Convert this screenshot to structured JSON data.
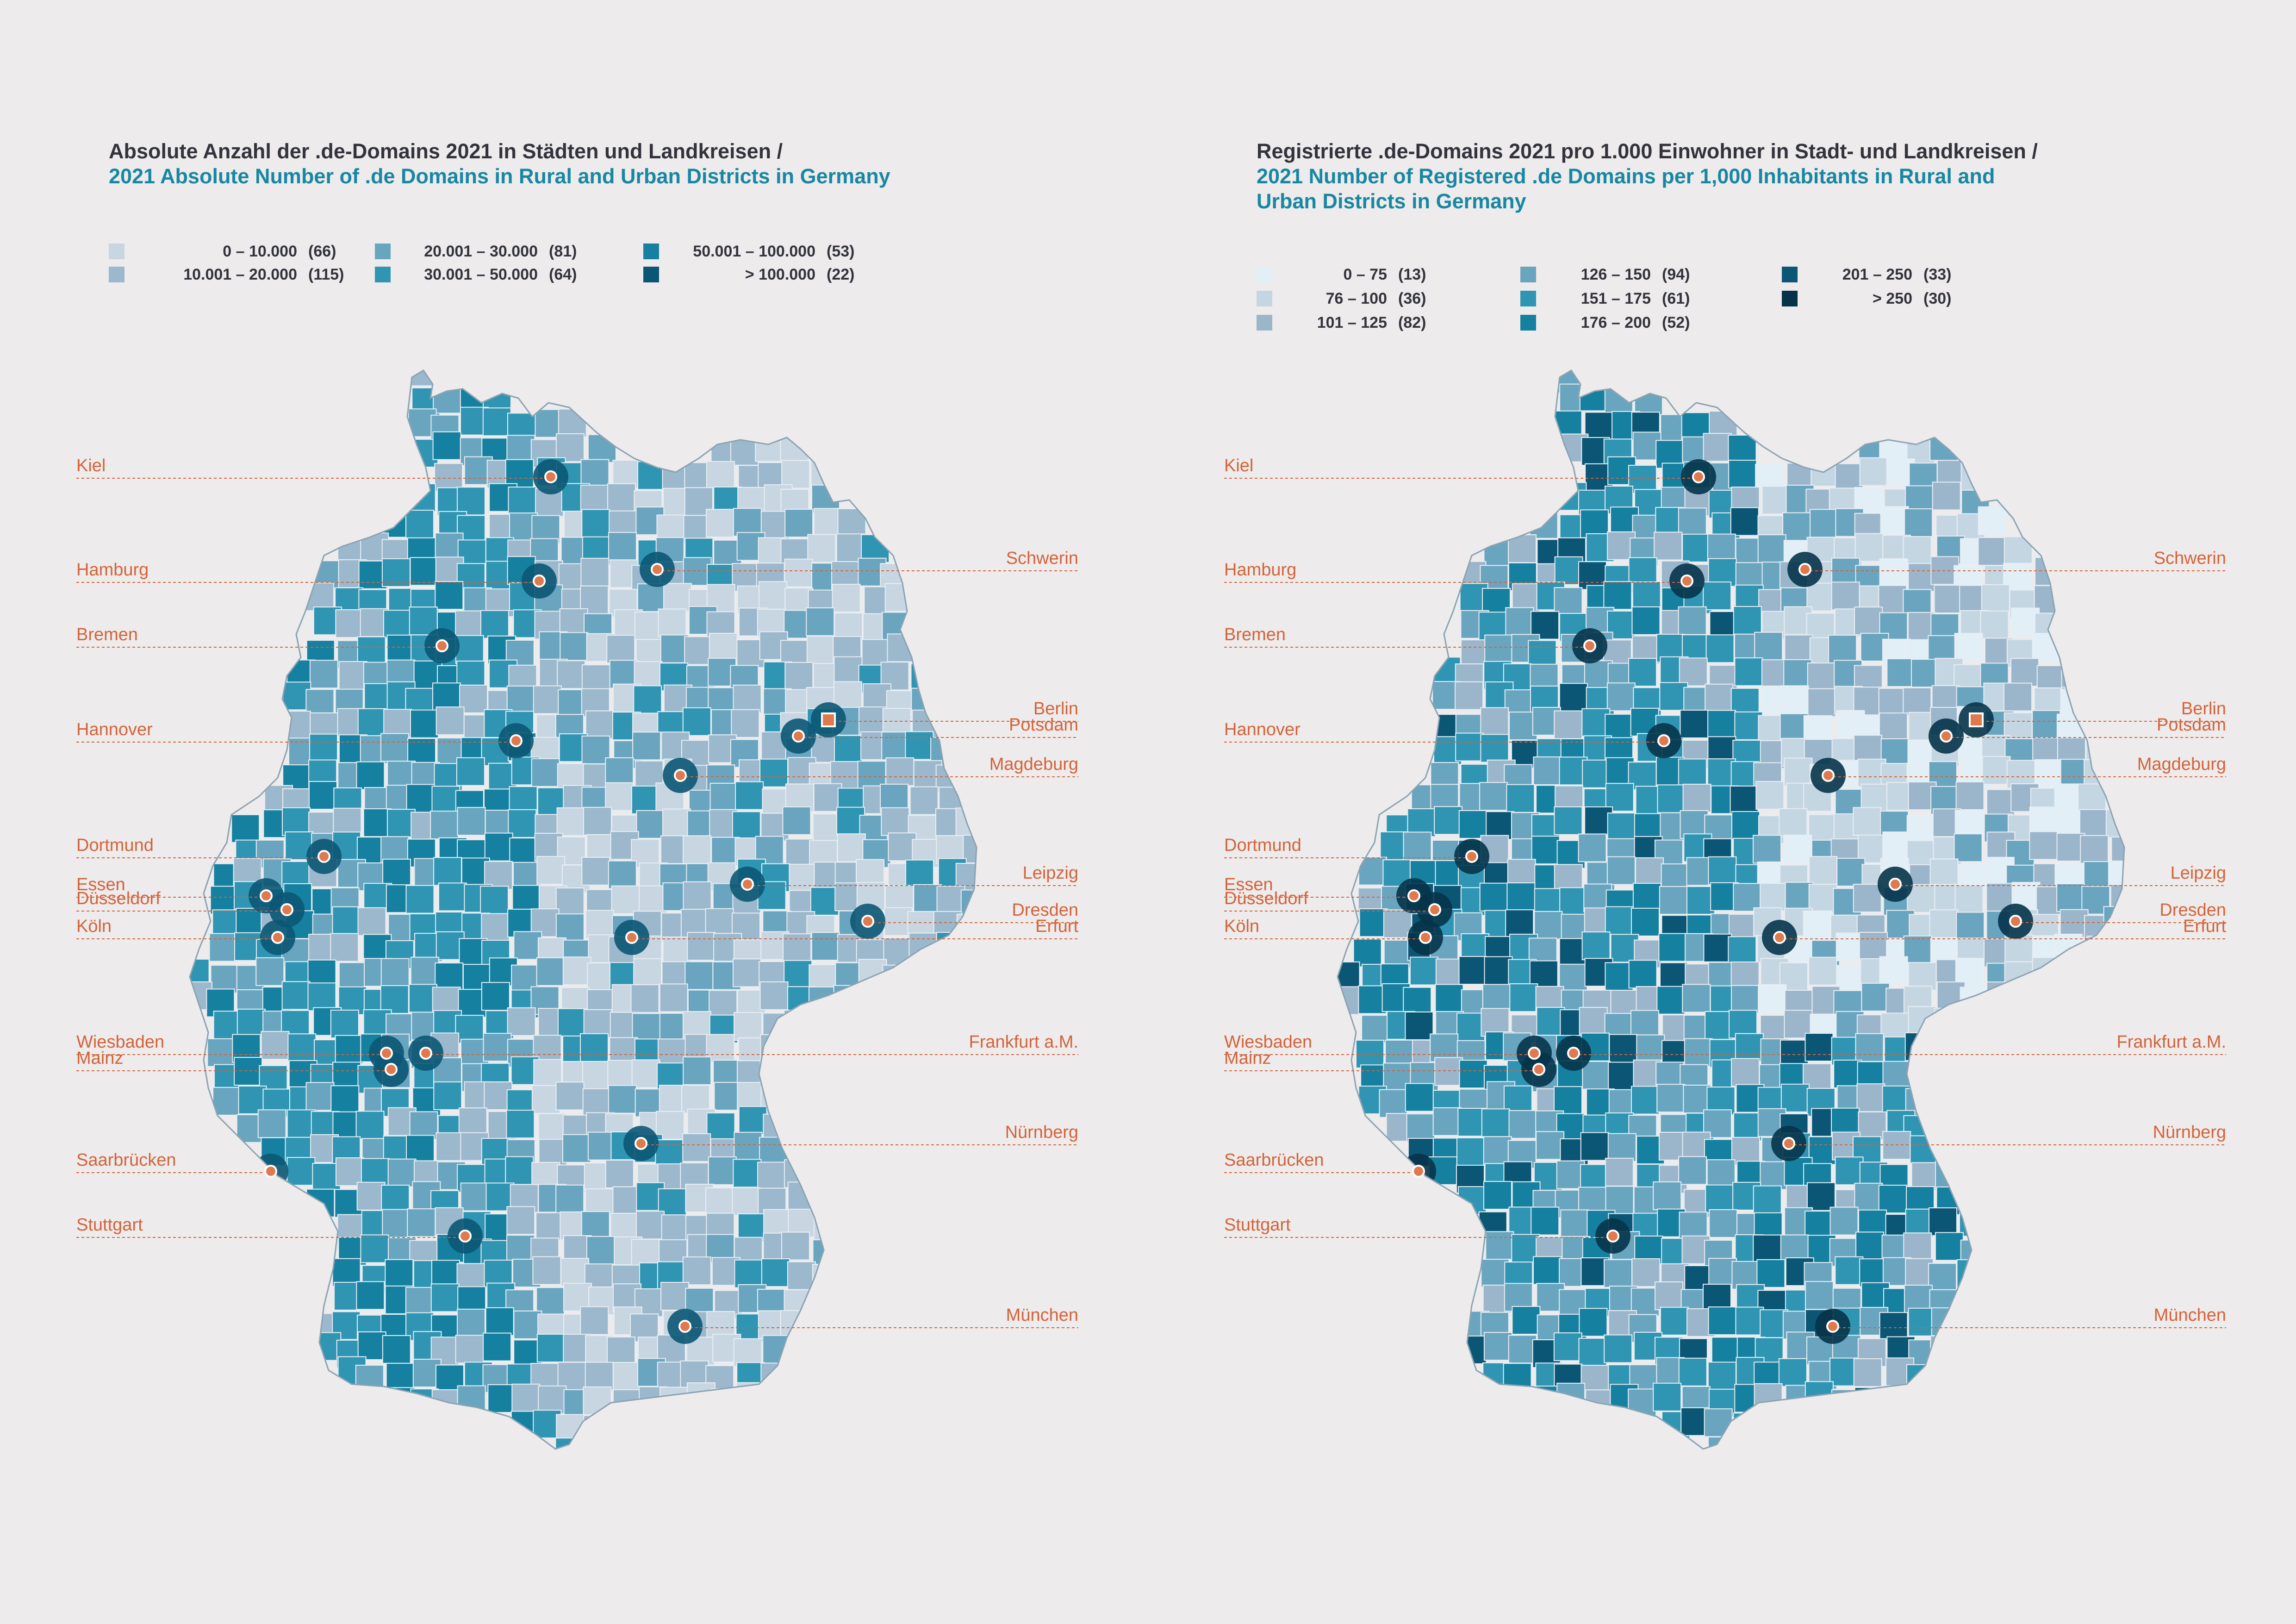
{
  "maps": [
    {
      "title_de": "Absolute Anzahl der .de-Domains 2021 in Städten und Landkreisen /",
      "title_en": "2021 Absolute Number of .de Domains in Rural and Urban Districts in Germany",
      "legend": [
        {
          "range": "0  –  10.000",
          "count": "(66)",
          "color": "#c8d6e2"
        },
        {
          "range": "10.001  –  20.000",
          "count": "(115)",
          "color": "#9cb8cc"
        },
        {
          "range": "20.001  –  30.000",
          "count": "(81)",
          "color": "#6aa5bf"
        },
        {
          "range": "30.001  –  50.000",
          "count": "(64)",
          "color": "#2f95b3"
        },
        {
          "range": "50.001  –  100.000",
          "count": "(53)",
          "color": "#15809f"
        },
        {
          "range": ">  100.000",
          "count": "(22)",
          "color": "#0b5674"
        }
      ]
    },
    {
      "title_de": "Registrierte .de-Domains 2021 pro 1.000 Einwohner in Stadt- und Landkreisen /",
      "title_en": "2021 Number of Registered .de Domains per 1,000 Inhabitants in Rural and Urban Districts in Germany",
      "legend": [
        {
          "range": "0  –    75",
          "count": "(13)",
          "color": "#e3eff6"
        },
        {
          "range": "76  –  100",
          "count": "(36)",
          "color": "#c5d6e3"
        },
        {
          "range": "101  –  125",
          "count": "(82)",
          "color": "#9bb6cb"
        },
        {
          "range": "126  –  150",
          "count": "(94)",
          "color": "#6aa5bf"
        },
        {
          "range": "151  –  175",
          "count": "(61)",
          "color": "#2f95b3"
        },
        {
          "range": "176  –  200",
          "count": "(52)",
          "color": "#15809f"
        },
        {
          "range": "201  –  250",
          "count": "(33)",
          "color": "#0b5674"
        },
        {
          "range": ">  250",
          "count": "(30)",
          "color": "#05344a"
        }
      ]
    }
  ],
  "cities_left_side": [
    "Kiel",
    "Hamburg",
    "Bremen",
    "Hannover",
    "Dortmund",
    "Essen",
    "Düsseldorf",
    "Köln",
    "Wiesbaden",
    "Mainz",
    "Saarbrücken",
    "Stuttgart"
  ],
  "cities_right_side": [
    "Schwerin",
    "Berlin",
    "Potsdam",
    "Magdeburg",
    "Leipzig",
    "Dresden",
    "Erfurt",
    "Frankfurt a.M.",
    "Nürnberg",
    "München"
  ],
  "colors": {
    "accent": "#d4633a",
    "background": "#edebeb",
    "title_en": "#1887a3",
    "title_de": "#33333c"
  }
}
